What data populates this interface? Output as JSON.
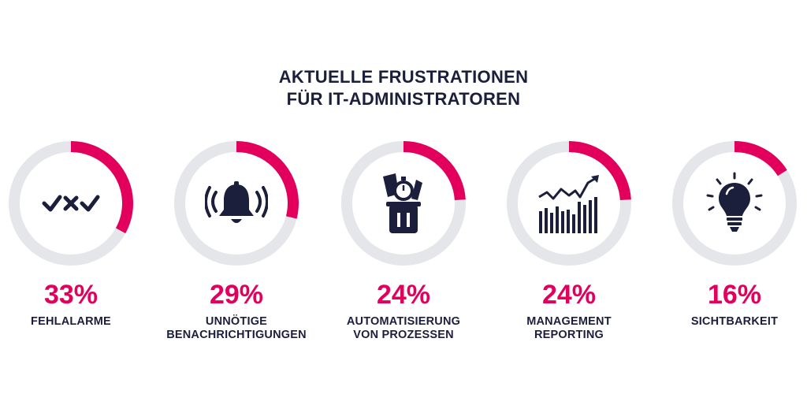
{
  "title": {
    "line1": "AKTUELLE FRUSTRATIONEN",
    "line2": "FÜR IT-ADMINISTRATOREN"
  },
  "colors": {
    "accent": "#e2005c",
    "track": "#e5e6ea",
    "text": "#1b1f3b"
  },
  "chart_data": {
    "type": "donut",
    "title": "AKTUELLE FRUSTRATIONEN FÜR IT-ADMINISTRATOREN",
    "unit": "%",
    "items": [
      {
        "label_lines": [
          "FEHLALARME"
        ],
        "value": 33,
        "display": "33%",
        "icon": "check-x-check-icon"
      },
      {
        "label_lines": [
          "UNNÖTIGE",
          "BENACHRICHTIGUNGEN"
        ],
        "value": 29,
        "display": "29%",
        "icon": "ringing-bell-icon"
      },
      {
        "label_lines": [
          "AUTOMATISIERUNG",
          "VON PROZESSEN"
        ],
        "value": 24,
        "display": "24%",
        "icon": "tools-bin-stopwatch-icon"
      },
      {
        "label_lines": [
          "MANAGEMENT",
          "REPORTING"
        ],
        "value": 24,
        "display": "24%",
        "icon": "bar-chart-trend-icon"
      },
      {
        "label_lines": [
          "SICHTBARKEIT"
        ],
        "value": 16,
        "display": "16%",
        "icon": "lightbulb-icon"
      }
    ]
  }
}
